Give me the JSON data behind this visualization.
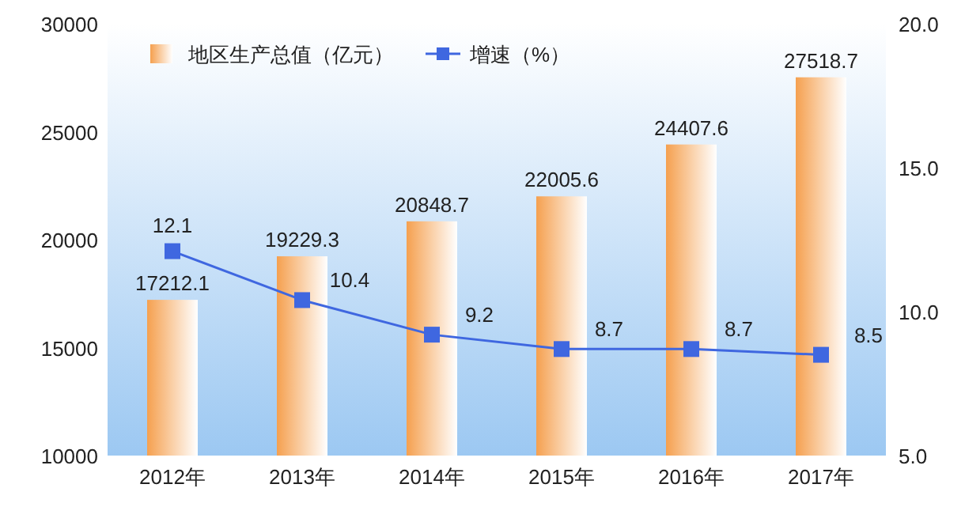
{
  "chart_data": {
    "type": "bar",
    "categories": [
      "2012年",
      "2013年",
      "2014年",
      "2015年",
      "2016年",
      "2017年"
    ],
    "series": [
      {
        "name": "地区生产总值（亿元）",
        "color": "#f5a04f",
        "values": [
          17212.1,
          19229.3,
          20848.7,
          22005.6,
          24407.6,
          27518.7
        ]
      },
      {
        "name": "增速（%）",
        "type": "line",
        "axis": "y2",
        "color": "#3f67e0",
        "values": [
          12.1,
          10.4,
          9.2,
          8.7,
          8.7,
          8.5
        ]
      }
    ],
    "ylim": [
      10000,
      30000
    ],
    "yticks": [
      10000,
      15000,
      20000,
      25000,
      30000
    ],
    "y2lim": [
      5,
      20
    ],
    "y2ticks": [
      {
        "value": 5,
        "label": "5.0"
      },
      {
        "value": 10,
        "label": "10.0"
      },
      {
        "value": 15,
        "label": "15.0"
      },
      {
        "value": 20,
        "label": "20.0"
      }
    ],
    "data_labels": true,
    "legend": "top",
    "marker": "square",
    "grid": false
  }
}
